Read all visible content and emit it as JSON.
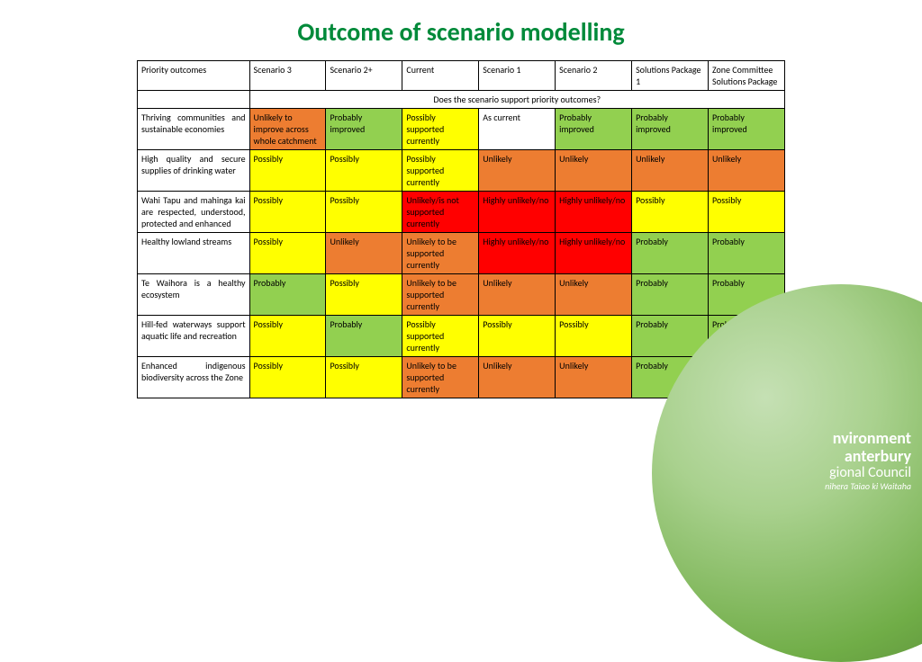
{
  "title": "Outcome of scenario modelling",
  "colors": {
    "title": "#008a3a",
    "cell": {
      "white": "#ffffff",
      "yellow": "#ffff00",
      "orange": "#ed7d31",
      "red": "#ff0000",
      "lgreen": "#92d050"
    }
  },
  "columns": [
    "Priority outcomes",
    "Scenario 3",
    "Scenario 2+",
    "Current",
    "Scenario 1",
    "Scenario 2",
    "Solutions Package 1",
    "Zone Committee Solutions Package"
  ],
  "banner": "Does the scenario support priority outcomes?",
  "rows": [
    {
      "label": "Thriving communities and sustainable economies",
      "cells": [
        {
          "t": "Unlikely to improve across whole catchment",
          "c": "orange"
        },
        {
          "t": "Probably improved",
          "c": "lgreen"
        },
        {
          "t": "Possibly supported currently",
          "c": "yellow"
        },
        {
          "t": "As current",
          "c": "white"
        },
        {
          "t": "Probably improved",
          "c": "lgreen"
        },
        {
          "t": "Probably improved",
          "c": "lgreen"
        },
        {
          "t": "Probably improved",
          "c": "lgreen"
        }
      ]
    },
    {
      "label": "High quality and secure supplies of drinking water",
      "cells": [
        {
          "t": "Possibly",
          "c": "yellow"
        },
        {
          "t": "Possibly",
          "c": "yellow"
        },
        {
          "t": "Possibly supported currently",
          "c": "yellow"
        },
        {
          "t": "Unlikely",
          "c": "orange"
        },
        {
          "t": "Unlikely",
          "c": "orange"
        },
        {
          "t": "Unlikely",
          "c": "orange"
        },
        {
          "t": "Unlikely",
          "c": "orange"
        }
      ]
    },
    {
      "label": "Wahi Tapu and mahinga kai are respected, understood, protected and enhanced",
      "cells": [
        {
          "t": "Possibly",
          "c": "yellow"
        },
        {
          "t": "Possibly",
          "c": "yellow"
        },
        {
          "t": "Unlikely/is not supported currently",
          "c": "red"
        },
        {
          "t": "Highly unlikely/no",
          "c": "red"
        },
        {
          "t": "Highly unlikely/no",
          "c": "red"
        },
        {
          "t": "Possibly",
          "c": "yellow"
        },
        {
          "t": "Possibly",
          "c": "yellow"
        }
      ]
    },
    {
      "label": "Healthy lowland streams",
      "cells": [
        {
          "t": "Possibly",
          "c": "yellow"
        },
        {
          "t": "Unlikely",
          "c": "orange"
        },
        {
          "t": "Unlikely to be supported currently",
          "c": "orange"
        },
        {
          "t": "Highly unlikely/no",
          "c": "red"
        },
        {
          "t": "Highly unlikely/no",
          "c": "red"
        },
        {
          "t": "Probably",
          "c": "lgreen"
        },
        {
          "t": "Probably",
          "c": "lgreen"
        }
      ]
    },
    {
      "label": "Te Waihora is a healthy ecosystem",
      "cells": [
        {
          "t": "Probably",
          "c": "lgreen"
        },
        {
          "t": "Possibly",
          "c": "yellow"
        },
        {
          "t": "Unlikely to be supported currently",
          "c": "orange"
        },
        {
          "t": "Unlikely",
          "c": "orange"
        },
        {
          "t": "Unlikely",
          "c": "orange"
        },
        {
          "t": "Probably",
          "c": "lgreen"
        },
        {
          "t": "Probably",
          "c": "lgreen"
        }
      ]
    },
    {
      "label": "Hill-fed waterways support aquatic life and recreation",
      "cells": [
        {
          "t": "Possibly",
          "c": "yellow"
        },
        {
          "t": "Probably",
          "c": "lgreen"
        },
        {
          "t": "Possibly supported currently",
          "c": "yellow"
        },
        {
          "t": "Possibly",
          "c": "yellow"
        },
        {
          "t": "Possibly",
          "c": "yellow"
        },
        {
          "t": "Probably",
          "c": "lgreen"
        },
        {
          "t": "Probably",
          "c": "lgreen"
        }
      ]
    },
    {
      "label": "Enhanced indigenous biodiversity across the Zone",
      "cells": [
        {
          "t": "Possibly",
          "c": "yellow"
        },
        {
          "t": "Possibly",
          "c": "yellow"
        },
        {
          "t": "Unlikely to be supported currently",
          "c": "orange"
        },
        {
          "t": "Unlikely",
          "c": "orange"
        },
        {
          "t": "Unlikely",
          "c": "orange"
        },
        {
          "t": "Probably",
          "c": "lgreen"
        },
        {
          "t": "Probably",
          "c": "lgreen"
        }
      ]
    }
  ],
  "logo": {
    "line1": "nvironment",
    "line2": "anterbury",
    "line3": "gional Council",
    "line4": "nihera Taiao ki Waitaha"
  }
}
